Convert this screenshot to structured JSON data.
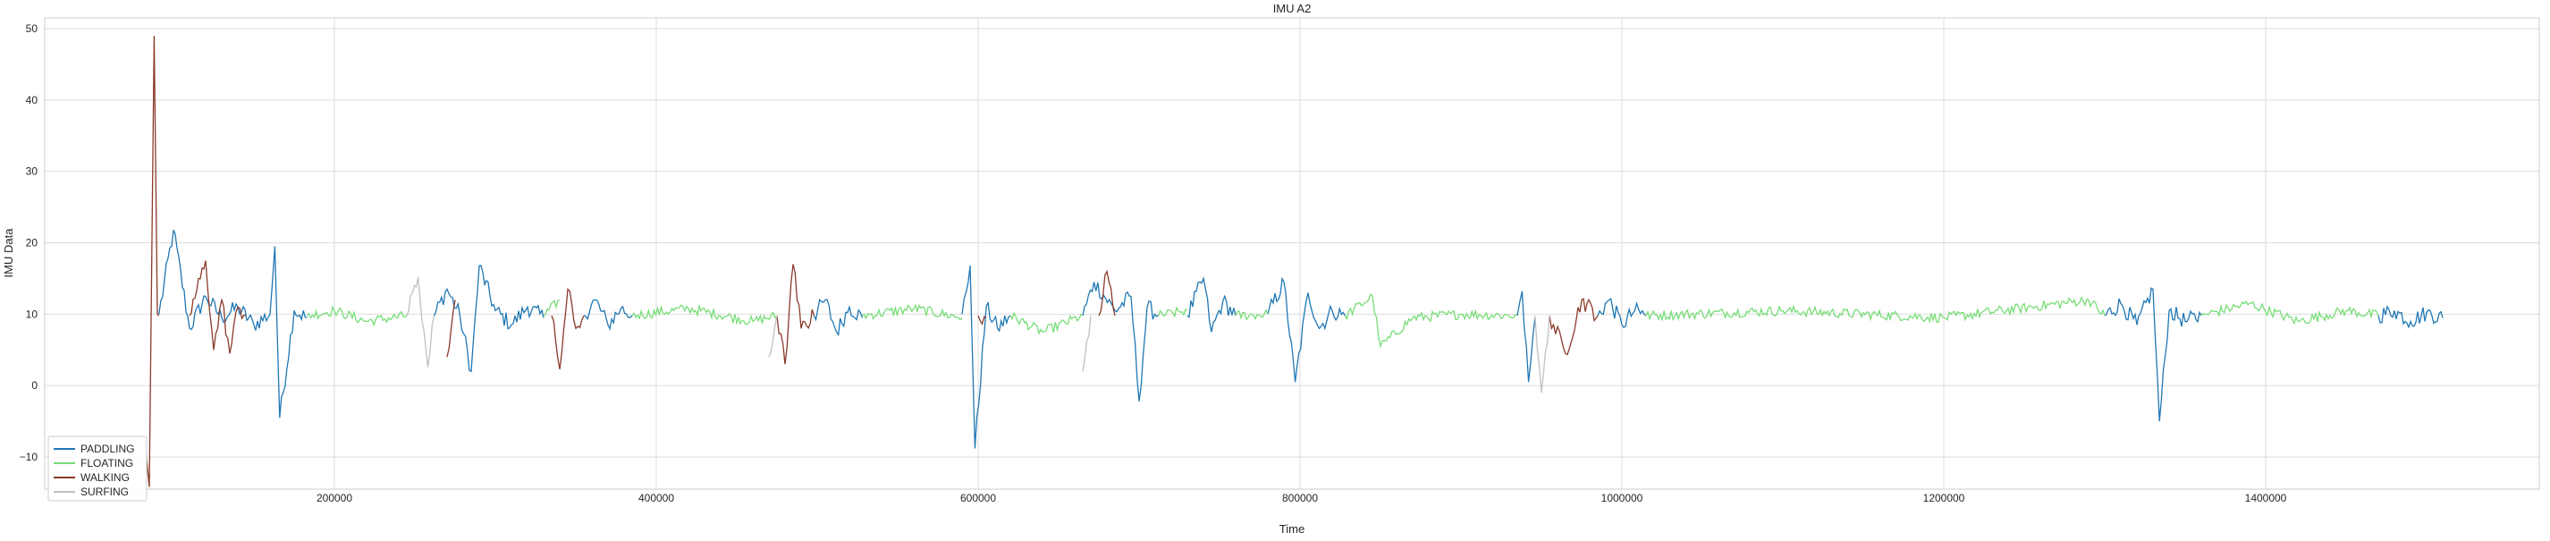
{
  "chart_data": {
    "type": "line",
    "title": "IMU A2",
    "xlabel": "Time",
    "ylabel": "IMU Data",
    "xlim": [
      20000,
      1570000
    ],
    "ylim": [
      -14.5,
      51.5
    ],
    "xticks": [
      200000,
      400000,
      600000,
      800000,
      1000000,
      1200000,
      1400000
    ],
    "xtick_labels": [
      "200000",
      "400000",
      "600000",
      "800000",
      "1000000",
      "1200000",
      "1400000"
    ],
    "yticks": [
      -10,
      0,
      10,
      20,
      30,
      40,
      50
    ],
    "ytick_labels": [
      "−10",
      "0",
      "10",
      "20",
      "30",
      "40",
      "50"
    ],
    "grid": true,
    "legend_position": "lower-left",
    "series": [
      {
        "name": "PADDLING",
        "color": "#1f77b4",
        "segments": [
          {
            "x": [
              91000,
              100000,
              110000,
              120000,
              130000,
              140000,
              150000,
              160000,
              163000,
              166000,
              175000,
              183000
            ],
            "y": [
              10,
              21.8,
              8,
              12.5,
              9.5,
              11,
              8.5,
              10,
              19.5,
              -4.5,
              10.5,
              9.5
            ]
          },
          {
            "x": [
              262000,
              270000,
              278000,
              285000,
              290000,
              300000,
              310000,
              320000,
              330000
            ],
            "y": [
              9.8,
              13.5,
              9.8,
              2,
              16.8,
              10.5,
              8.5,
              11,
              9.5
            ]
          },
          {
            "x": [
              355000,
              362000,
              370000,
              378000,
              385000
            ],
            "y": [
              9.8,
              12,
              8.5,
              10.8,
              9.8
            ]
          },
          {
            "x": [
              498000,
              505000,
              512000,
              520000,
              528000
            ],
            "y": [
              9.8,
              12,
              7.5,
              11,
              9.5
            ]
          },
          {
            "x": [
              590000,
              595000,
              598000,
              605000,
              612000,
              620000
            ],
            "y": [
              10,
              16.8,
              -8.8,
              11,
              8,
              9.8
            ]
          },
          {
            "x": [
              665000,
              672000,
              685000,
              695000,
              700000,
              705000,
              712000
            ],
            "y": [
              9.8,
              14.5,
              10.5,
              12.5,
              -2.2,
              11,
              9.8
            ]
          },
          {
            "x": [
              730000,
              740000,
              745000,
              752000,
              760000
            ],
            "y": [
              9.8,
              15,
              7.5,
              11.8,
              9.8
            ]
          },
          {
            "x": [
              780000,
              790000,
              797000,
              805000,
              812000,
              820000,
              828000
            ],
            "y": [
              10,
              14.5,
              0.5,
              13,
              8,
              10.5,
              9.8
            ]
          },
          {
            "x": [
              935000,
              938000,
              942000,
              946000
            ],
            "y": [
              9.8,
              13.2,
              0.5,
              9.5
            ]
          },
          {
            "x": [
              985000,
              992000,
              1000000,
              1008000,
              1015000
            ],
            "y": [
              9.8,
              12,
              8.5,
              10.5,
              9.8
            ]
          },
          {
            "x": [
              1300000,
              1310000,
              1320000,
              1330000,
              1334000,
              1340000,
              1350000,
              1360000
            ],
            "y": [
              9.8,
              11.5,
              8.5,
              13.5,
              -5,
              10.5,
              9,
              9.8
            ]
          },
          {
            "x": [
              1470000,
              1480000,
              1490000,
              1500000,
              1510000
            ],
            "y": [
              9.8,
              10.5,
              9,
              10.2,
              9.5
            ]
          }
        ]
      },
      {
        "name": "FLOATING",
        "color": "#77dd77",
        "segments": [
          {
            "x": [
              183000,
              200000,
              220000,
              245000
            ],
            "y": [
              9.8,
              10.5,
              9,
              9.8
            ]
          },
          {
            "x": [
              330000,
              340000
            ],
            "y": [
              9.8,
              12
            ]
          },
          {
            "x": [
              385000,
              420000,
              460000,
              475000
            ],
            "y": [
              9.8,
              10.8,
              9,
              9.8
            ]
          },
          {
            "x": [
              528000,
              560000,
              590000
            ],
            "y": [
              9.8,
              10.8,
              9.5
            ]
          },
          {
            "x": [
              620000,
              640000,
              665000
            ],
            "y": [
              9.8,
              7.5,
              9.8
            ]
          },
          {
            "x": [
              712000,
              730000
            ],
            "y": [
              9.8,
              10.5
            ]
          },
          {
            "x": [
              760000,
              780000
            ],
            "y": [
              9.8,
              10
            ]
          },
          {
            "x": [
              828000,
              845000,
              850000,
              870000,
              900000,
              935000
            ],
            "y": [
              9.8,
              12.5,
              5.5,
              9.5,
              10,
              9.8
            ]
          },
          {
            "x": [
              1015000,
              1100000,
              1200000,
              1290000,
              1300000
            ],
            "y": [
              9.8,
              10.5,
              9.5,
              12,
              9.8
            ]
          },
          {
            "x": [
              1360000,
              1390000,
              1420000,
              1450000,
              1470000
            ],
            "y": [
              9.8,
              11.5,
              9,
              10.5,
              9.8
            ]
          }
        ]
      },
      {
        "name": "WALKING",
        "color": "#8b3a2b",
        "segments": [
          {
            "x": [
              83000,
              85000,
              88000,
              90000,
              91000
            ],
            "y": [
              -9.5,
              -14.2,
              49,
              10,
              9.8
            ]
          },
          {
            "x": [
              110000,
              120000,
              125000,
              130000,
              135000,
              140000,
              145000
            ],
            "y": [
              9.8,
              17.5,
              5,
              12,
              4.5,
              11,
              9.8
            ]
          },
          {
            "x": [
              270000,
              275000
            ],
            "y": [
              4,
              12
            ]
          },
          {
            "x": [
              335000,
              340000,
              345000,
              350000,
              355000
            ],
            "y": [
              9.8,
              2.3,
              13.5,
              8,
              9.8
            ]
          },
          {
            "x": [
              475000,
              480000,
              485000,
              490000,
              498000
            ],
            "y": [
              9.8,
              3,
              17,
              8,
              9.8
            ]
          },
          {
            "x": [
              600000,
              605000
            ],
            "y": [
              9.8,
              9.5
            ]
          },
          {
            "x": [
              675000,
              680000,
              685000
            ],
            "y": [
              9.8,
              16,
              9.8
            ]
          },
          {
            "x": [
              955000,
              965000,
              975000,
              985000
            ],
            "y": [
              9.8,
              4.5,
              12,
              9.8
            ]
          }
        ]
      },
      {
        "name": "SURFING",
        "color": "#c0c0c0",
        "segments": [
          {
            "x": [
              245000,
              252000,
              258000,
              262000
            ],
            "y": [
              9.8,
              15.2,
              2.6,
              9.8
            ]
          },
          {
            "x": [
              470000,
              475000
            ],
            "y": [
              4,
              9.8
            ]
          },
          {
            "x": [
              665000,
              670000
            ],
            "y": [
              2,
              9.8
            ]
          },
          {
            "x": [
              946000,
              950000,
              955000
            ],
            "y": [
              9.8,
              -1,
              9.8
            ]
          }
        ]
      }
    ]
  }
}
